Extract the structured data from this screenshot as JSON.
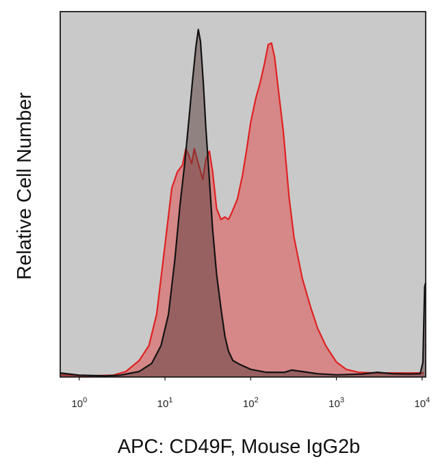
{
  "chart_data": {
    "type": "area",
    "title": "",
    "xlabel": "APC: CD49F, Mouse IgG2b",
    "ylabel": "Relative Cell Number",
    "x_scale": "log",
    "xlim": [
      0.6,
      11000
    ],
    "ylim": [
      0,
      100
    ],
    "x_ticks": [
      {
        "value": 1,
        "base": "10",
        "exp": "0"
      },
      {
        "value": 10,
        "base": "10",
        "exp": "1"
      },
      {
        "value": 100,
        "base": "10",
        "exp": "2"
      },
      {
        "value": 1000,
        "base": "10",
        "exp": "3"
      },
      {
        "value": 10000,
        "base": "10",
        "exp": "4"
      }
    ],
    "background_color": "#c9c9c9",
    "grid": false,
    "legend": "none",
    "series": [
      {
        "color": "#e02020",
        "fill": "rgba(224,80,80,0.55)",
        "points": [
          [
            0.6,
            0.6
          ],
          [
            1.2,
            0.3
          ],
          [
            2.5,
            0.5
          ],
          [
            3.5,
            1.5
          ],
          [
            5,
            4.5
          ],
          [
            6.5,
            8.6
          ],
          [
            8,
            17.2
          ],
          [
            10,
            36
          ],
          [
            12,
            51.7
          ],
          [
            14,
            56.2
          ],
          [
            16,
            58
          ],
          [
            17.5,
            62.5
          ],
          [
            19,
            60.7
          ],
          [
            20.5,
            58.4
          ],
          [
            22,
            62.5
          ],
          [
            25,
            57.7
          ],
          [
            27.6,
            54.1
          ],
          [
            30,
            59.6
          ],
          [
            33,
            61.8
          ],
          [
            36,
            56.2
          ],
          [
            40,
            46.1
          ],
          [
            45,
            43.1
          ],
          [
            50,
            43.8
          ],
          [
            55,
            43.1
          ],
          [
            60,
            44.9
          ],
          [
            70,
            48.7
          ],
          [
            80,
            55.1
          ],
          [
            90,
            62.5
          ],
          [
            100,
            69.7
          ],
          [
            115,
            76.4
          ],
          [
            130,
            80.9
          ],
          [
            145,
            85.8
          ],
          [
            160,
            91
          ],
          [
            175,
            91.4
          ],
          [
            190,
            87.6
          ],
          [
            210,
            78.7
          ],
          [
            240,
            67.4
          ],
          [
            280,
            49.4
          ],
          [
            320,
            38.2
          ],
          [
            400,
            27
          ],
          [
            500,
            19.1
          ],
          [
            600,
            13.5
          ],
          [
            750,
            8.6
          ],
          [
            1000,
            4.1
          ],
          [
            1300,
            2.1
          ],
          [
            1800,
            1.3
          ],
          [
            2800,
            1.1
          ],
          [
            4000,
            1.1
          ],
          [
            6000,
            1.1
          ],
          [
            8500,
            1.1
          ],
          [
            10500,
            1.1
          ]
        ]
      },
      {
        "color": "#111111",
        "fill": "rgba(90,60,60,0.5)",
        "points": [
          [
            0.6,
            1.1
          ],
          [
            1,
            0.5
          ],
          [
            2,
            0.3
          ],
          [
            3,
            0.5
          ],
          [
            5,
            1.5
          ],
          [
            7,
            3.7
          ],
          [
            9,
            8.6
          ],
          [
            11,
            17.2
          ],
          [
            13,
            31.8
          ],
          [
            15,
            47.2
          ],
          [
            17,
            58.4
          ],
          [
            19,
            70.4
          ],
          [
            21,
            81.3
          ],
          [
            23,
            90.6
          ],
          [
            24.5,
            95.1
          ],
          [
            26,
            91.8
          ],
          [
            28,
            80.5
          ],
          [
            30,
            68.2
          ],
          [
            33,
            53.9
          ],
          [
            36,
            40.4
          ],
          [
            40,
            28.1
          ],
          [
            45,
            18.7
          ],
          [
            50,
            11.2
          ],
          [
            55,
            7.1
          ],
          [
            62,
            4.5
          ],
          [
            75,
            3.4
          ],
          [
            100,
            2.1
          ],
          [
            150,
            1.3
          ],
          [
            250,
            1.3
          ],
          [
            300,
            1.9
          ],
          [
            400,
            1.5
          ],
          [
            600,
            0.9
          ],
          [
            1000,
            0.6
          ],
          [
            2000,
            0.8
          ],
          [
            3000,
            1.3
          ],
          [
            4500,
            0.9
          ],
          [
            7000,
            0.8
          ],
          [
            9500,
            0.9
          ],
          [
            10200,
            4
          ],
          [
            10700,
            24.7
          ],
          [
            11000,
            25.8
          ]
        ]
      }
    ]
  }
}
